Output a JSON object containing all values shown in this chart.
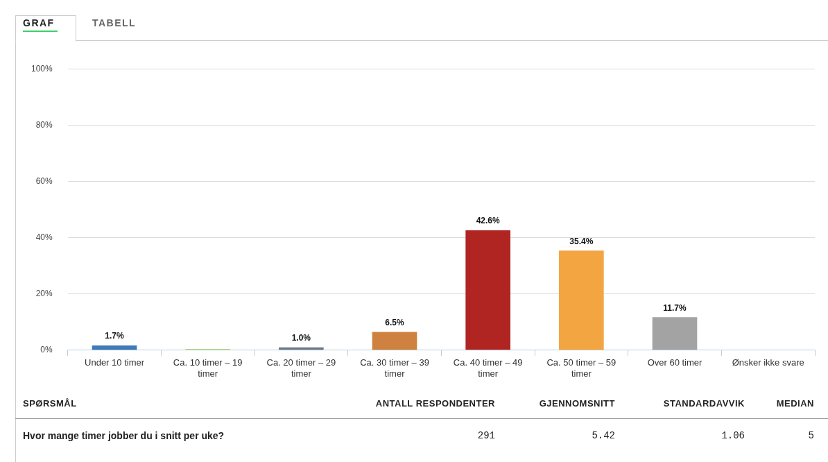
{
  "chart_data": {
    "type": "bar",
    "categories": [
      "Under 10 timer",
      "Ca. 10 timer – 19 timer",
      "Ca. 20 timer – 29 timer",
      "Ca. 30 timer – 39 timer",
      "Ca. 40 timer – 49 timer",
      "Ca. 50 timer – 59 timer",
      "Over 60 timer",
      "Ønsker ikke svare"
    ],
    "values": [
      1.7,
      0.4,
      1.0,
      6.5,
      42.6,
      35.4,
      11.7,
      0
    ],
    "colors": [
      "#3d7ab8",
      "#9bcb5a",
      "#6b7a88",
      "#cf8240",
      "#b02522",
      "#f3a541",
      "#a3a3a3",
      "#cccccc"
    ],
    "value_labels": [
      "1.7%",
      null,
      "1.0%",
      "6.5%",
      "42.6%",
      "35.4%",
      "11.7%",
      null
    ],
    "ylim": [
      0,
      100
    ],
    "yticks": [
      {
        "value": 0,
        "label": "0%"
      },
      {
        "value": 20,
        "label": "20%"
      },
      {
        "value": 40,
        "label": "40%"
      },
      {
        "value": 60,
        "label": "60%"
      },
      {
        "value": 80,
        "label": "80%"
      },
      {
        "value": 100,
        "label": "100%"
      }
    ],
    "grid": "y",
    "legend": false,
    "annotations": [
      "GRAF",
      "TABELL",
      "SPØRSMÅL",
      "ANTALL RESPONDENTER",
      "GJENNOMSNITT",
      "STANDARDAVVIK",
      "MEDIAN",
      "Hvor mange timer jobber du i snitt per uke?",
      "291",
      "5.42",
      "1.06",
      "5"
    ]
  }
}
